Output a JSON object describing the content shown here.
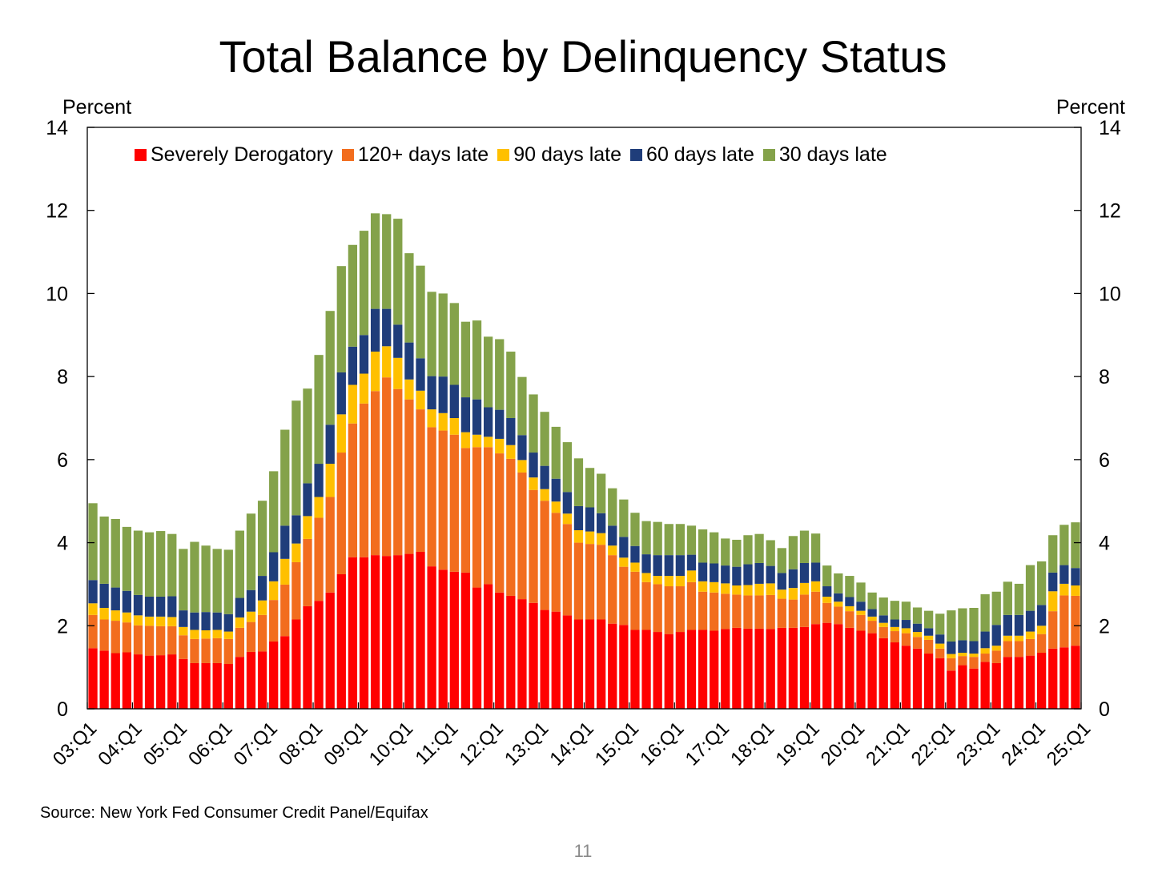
{
  "title": "Total Balance by Delinquency Status",
  "source": "Source: New York Fed Consumer Credit Panel/Equifax",
  "page_number": "11",
  "chart_data": {
    "type": "bar",
    "stacked": true,
    "title": "Total Balance by Delinquency Status",
    "ylabel_left": "Percent",
    "ylabel_right": "Percent",
    "ylim": [
      0,
      14
    ],
    "yticks": [
      "0",
      "2",
      "4",
      "6",
      "8",
      "10",
      "12",
      "14"
    ],
    "tick_labels": [
      "03:Q1",
      "04:Q1",
      "05:Q1",
      "06:Q1",
      "07:Q1",
      "08:Q1",
      "09:Q1",
      "10:Q1",
      "11:Q1",
      "12:Q1",
      "13:Q1",
      "14:Q1",
      "15:Q1",
      "16:Q1",
      "17:Q1",
      "18:Q1",
      "19:Q1",
      "20:Q1",
      "21:Q1",
      "22:Q1",
      "23:Q1",
      "24:Q1",
      "25:Q1"
    ],
    "legend_position": "top",
    "series": [
      {
        "name": "Severely Derogatory",
        "color": "#ff0000",
        "values": [
          1.46,
          1.4,
          1.34,
          1.36,
          1.31,
          1.28,
          1.29,
          1.31,
          1.2,
          1.1,
          1.1,
          1.1,
          1.08,
          1.25,
          1.37,
          1.38,
          1.62,
          1.75,
          2.15,
          2.47,
          2.6,
          2.8,
          3.24,
          3.65,
          3.65,
          3.7,
          3.68,
          3.7,
          3.73,
          3.78,
          3.43,
          3.35,
          3.3,
          3.28,
          2.92,
          3.0,
          2.8,
          2.72,
          2.64,
          2.55,
          2.38,
          2.34,
          2.25,
          2.15,
          2.15,
          2.15,
          2.05,
          2.02,
          1.9,
          1.9,
          1.85,
          1.8,
          1.85,
          1.9,
          1.9,
          1.88,
          1.92,
          1.95,
          1.93,
          1.93,
          1.92,
          1.95,
          1.95,
          1.97,
          2.04,
          2.07,
          2.04,
          1.95,
          1.88,
          1.82,
          1.7,
          1.6,
          1.52,
          1.45,
          1.33,
          1.22,
          0.92,
          1.05,
          0.97,
          1.13,
          1.1,
          1.25,
          1.25,
          1.28,
          1.35,
          1.45,
          1.48,
          1.52
        ]
      },
      {
        "name": "120+ days late",
        "color": "#f26d1e",
        "values": [
          0.8,
          0.75,
          0.78,
          0.72,
          0.7,
          0.72,
          0.7,
          0.68,
          0.57,
          0.58,
          0.59,
          0.6,
          0.6,
          0.7,
          0.72,
          0.88,
          1.0,
          1.24,
          1.38,
          1.62,
          2.0,
          2.3,
          2.93,
          3.22,
          3.7,
          3.95,
          4.3,
          4.0,
          3.72,
          3.43,
          3.35,
          3.35,
          3.3,
          3.0,
          3.38,
          3.3,
          3.35,
          3.3,
          3.05,
          2.72,
          2.63,
          2.38,
          2.2,
          1.85,
          1.82,
          1.8,
          1.65,
          1.4,
          1.4,
          1.15,
          1.15,
          1.15,
          1.1,
          1.15,
          0.92,
          0.92,
          0.85,
          0.8,
          0.8,
          0.8,
          0.82,
          0.7,
          0.68,
          0.78,
          0.78,
          0.48,
          0.42,
          0.4,
          0.38,
          0.3,
          0.27,
          0.27,
          0.3,
          0.28,
          0.33,
          0.23,
          0.3,
          0.22,
          0.28,
          0.2,
          0.3,
          0.38,
          0.38,
          0.4,
          0.45,
          0.9,
          1.25,
          1.2
        ]
      },
      {
        "name": "90 days late",
        "color": "#ffc000",
        "values": [
          0.28,
          0.28,
          0.25,
          0.24,
          0.24,
          0.22,
          0.23,
          0.22,
          0.2,
          0.22,
          0.2,
          0.2,
          0.18,
          0.25,
          0.25,
          0.35,
          0.45,
          0.62,
          0.45,
          0.55,
          0.5,
          0.8,
          0.92,
          0.93,
          0.72,
          0.95,
          0.75,
          0.75,
          0.48,
          0.45,
          0.43,
          0.42,
          0.4,
          0.38,
          0.3,
          0.25,
          0.35,
          0.33,
          0.3,
          0.3,
          0.28,
          0.27,
          0.25,
          0.3,
          0.3,
          0.28,
          0.23,
          0.22,
          0.22,
          0.22,
          0.2,
          0.25,
          0.25,
          0.28,
          0.25,
          0.25,
          0.25,
          0.22,
          0.25,
          0.28,
          0.28,
          0.22,
          0.28,
          0.28,
          0.25,
          0.15,
          0.12,
          0.12,
          0.1,
          0.1,
          0.1,
          0.1,
          0.12,
          0.12,
          0.1,
          0.12,
          0.1,
          0.08,
          0.08,
          0.13,
          0.12,
          0.13,
          0.13,
          0.18,
          0.2,
          0.48,
          0.28,
          0.25
        ]
      },
      {
        "name": "60 days late",
        "color": "#1f3d7a",
        "values": [
          0.56,
          0.58,
          0.55,
          0.52,
          0.49,
          0.48,
          0.48,
          0.5,
          0.4,
          0.42,
          0.44,
          0.42,
          0.42,
          0.47,
          0.52,
          0.59,
          0.7,
          0.8,
          0.68,
          0.79,
          0.8,
          0.94,
          1.01,
          0.92,
          0.93,
          1.03,
          0.9,
          0.8,
          0.89,
          0.78,
          0.8,
          0.88,
          0.8,
          0.84,
          0.85,
          0.71,
          0.7,
          0.65,
          0.6,
          0.6,
          0.56,
          0.55,
          0.52,
          0.58,
          0.58,
          0.48,
          0.48,
          0.5,
          0.4,
          0.45,
          0.5,
          0.5,
          0.5,
          0.38,
          0.45,
          0.45,
          0.43,
          0.45,
          0.5,
          0.5,
          0.42,
          0.4,
          0.45,
          0.48,
          0.45,
          0.25,
          0.2,
          0.22,
          0.22,
          0.18,
          0.18,
          0.18,
          0.2,
          0.2,
          0.18,
          0.22,
          0.3,
          0.3,
          0.3,
          0.4,
          0.5,
          0.5,
          0.5,
          0.5,
          0.5,
          0.45,
          0.45,
          0.42
        ]
      },
      {
        "name": "30 days late",
        "color": "#84a24a",
        "values": [
          1.85,
          1.62,
          1.65,
          1.54,
          1.55,
          1.55,
          1.58,
          1.5,
          1.48,
          1.7,
          1.6,
          1.53,
          1.55,
          1.62,
          1.84,
          1.81,
          1.95,
          2.31,
          2.76,
          2.28,
          2.62,
          2.74,
          2.56,
          2.45,
          2.51,
          2.3,
          2.28,
          2.55,
          2.15,
          2.23,
          2.03,
          2.0,
          1.97,
          1.82,
          1.9,
          1.7,
          1.7,
          1.6,
          1.4,
          1.4,
          1.3,
          1.25,
          1.2,
          1.15,
          0.95,
          0.95,
          0.9,
          0.9,
          0.8,
          0.8,
          0.8,
          0.75,
          0.75,
          0.7,
          0.8,
          0.75,
          0.65,
          0.65,
          0.7,
          0.7,
          0.62,
          0.6,
          0.8,
          0.78,
          0.7,
          0.5,
          0.48,
          0.51,
          0.46,
          0.4,
          0.43,
          0.45,
          0.44,
          0.39,
          0.42,
          0.5,
          0.75,
          0.77,
          0.8,
          0.9,
          0.8,
          0.8,
          0.75,
          1.1,
          1.05,
          0.9,
          0.97,
          1.1
        ]
      }
    ]
  }
}
